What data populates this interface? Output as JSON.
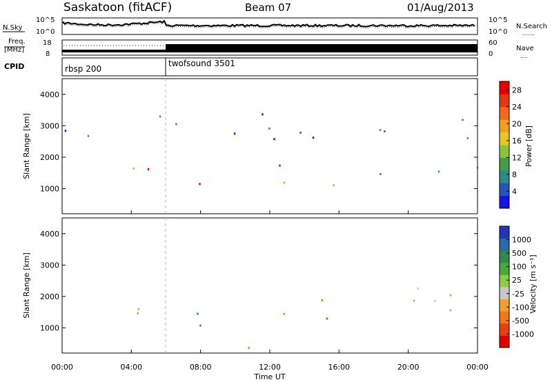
{
  "header": {
    "station": "Saskatoon (fitACF)",
    "beam": "Beam 07",
    "date": "01/Aug/2013"
  },
  "noise_panel": {
    "left_label": "N.Sky",
    "left_ticks": [
      "10^5",
      "10^0"
    ],
    "right_ticks": [
      "10^5",
      "10^0"
    ],
    "right_label": "N.Search",
    "right_legend_line": "......."
  },
  "freq_panel": {
    "label_line1": "Freq.",
    "label_line2": "[MHz]",
    "left_ticks": [
      "18",
      "8"
    ],
    "right_ticks": [
      "60",
      "0"
    ],
    "right_label": "Nave",
    "right_legend_line": "...."
  },
  "cpid_panel": {
    "label": "CPID",
    "modes": [
      {
        "name": "rbsp 200",
        "start_hour": 0,
        "end_hour": 6
      },
      {
        "name": "twofsound 3501",
        "start_hour": 6,
        "end_hour": 24
      }
    ]
  },
  "chart_data": [
    {
      "type": "heatmap",
      "title": "",
      "xlabel": "",
      "ylabel": "Slant Range [km]",
      "xlim_hours": [
        0,
        24
      ],
      "ylim": [
        200,
        4500
      ],
      "y_ticks": [
        "1000",
        "2000",
        "3000",
        "4000"
      ],
      "colorbar": {
        "label": "Power [dB]",
        "ticks": [
          "4",
          "8",
          "12",
          "16",
          "20",
          "24",
          "28"
        ],
        "colors": [
          "#1414e6",
          "#2456b8",
          "#2f8a86",
          "#4a9a4c",
          "#8cc33c",
          "#e8c62a",
          "#f2a020",
          "#f06a18",
          "#e23818",
          "#e60000"
        ]
      },
      "features": [
        {
          "hours": [
            0,
            6
          ],
          "range_km": [
            1100,
            1700
          ],
          "power_db": 24
        },
        {
          "hours": [
            6,
            8.5
          ],
          "range_km": [
            700,
            1500
          ],
          "power_db": 28
        },
        {
          "hours": [
            12.5,
            16
          ],
          "range_km": [
            1100,
            2200
          ],
          "power_db": 24
        },
        {
          "hours": [
            17,
            24
          ],
          "range_km": [
            1400,
            2100
          ],
          "power_db": 12
        },
        {
          "hours": [
            0,
            24
          ],
          "range_km": [
            2500,
            3400
          ],
          "power_db": 6
        }
      ]
    },
    {
      "type": "heatmap",
      "title": "",
      "xlabel": "Time UT",
      "ylabel": "Slant Range [km]",
      "xlim_hours": [
        0,
        24
      ],
      "ylim": [
        200,
        4500
      ],
      "y_ticks": [
        "1000",
        "2000",
        "3000",
        "4000"
      ],
      "x_ticks": [
        "00:00",
        "04:00",
        "08:00",
        "12:00",
        "16:00",
        "20:00",
        "00:00"
      ],
      "colorbar": {
        "label": "Velocity [m s⁻¹]",
        "ticks": [
          "1000",
          "500",
          "100",
          "25",
          "-25",
          "-100",
          "-500",
          "-1000"
        ],
        "colors": [
          "#2633b8",
          "#2c6aa8",
          "#2f8a4e",
          "#4aa83c",
          "#8ccc4a",
          "#c8c8c8",
          "#f0a030",
          "#f07818",
          "#e84010",
          "#e00000"
        ]
      },
      "features": [
        {
          "hours": [
            0,
            6
          ],
          "range_km": [
            1100,
            1700
          ],
          "velocity_ms": 0
        },
        {
          "hours": [
            3,
            8
          ],
          "range_km": [
            800,
            1500
          ],
          "velocity_ms": 150
        },
        {
          "hours": [
            12.5,
            16
          ],
          "range_km": [
            1100,
            2200
          ],
          "velocity_ms": -500
        },
        {
          "hours": [
            16,
            24
          ],
          "range_km": [
            1500,
            2400
          ],
          "velocity_ms": 0
        },
        {
          "hours": [
            10,
            14
          ],
          "range_km": [
            250,
            500
          ],
          "velocity_ms": -150
        }
      ]
    }
  ]
}
